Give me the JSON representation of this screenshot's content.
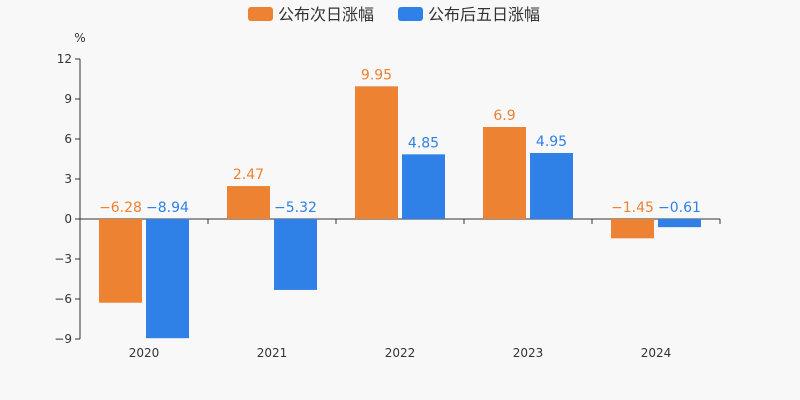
{
  "chart_data": {
    "type": "bar",
    "categories": [
      "2020",
      "2021",
      "2022",
      "2023",
      "2024"
    ],
    "series": [
      {
        "name": "公布次日涨幅",
        "color": "#ee8233",
        "values": [
          -6.28,
          2.47,
          9.95,
          6.9,
          -1.45
        ],
        "labels": [
          "−6.28",
          "2.47",
          "9.95",
          "6.9",
          "−1.45"
        ]
      },
      {
        "name": "公布后五日涨幅",
        "color": "#2f80e7",
        "values": [
          -8.94,
          -5.32,
          4.85,
          4.95,
          -0.61
        ],
        "labels": [
          "−8.94",
          "−5.32",
          "4.85",
          "4.95",
          "−0.61"
        ]
      }
    ],
    "y_unit": "%",
    "ylim": [
      -9,
      12
    ],
    "yticks": [
      12,
      9,
      6,
      3,
      0,
      -3,
      -6,
      -9
    ],
    "ytick_labels": [
      "12",
      "9",
      "6",
      "3",
      "0",
      "−3",
      "−6",
      "−9"
    ],
    "grid": false,
    "legend_position": "top-center"
  }
}
